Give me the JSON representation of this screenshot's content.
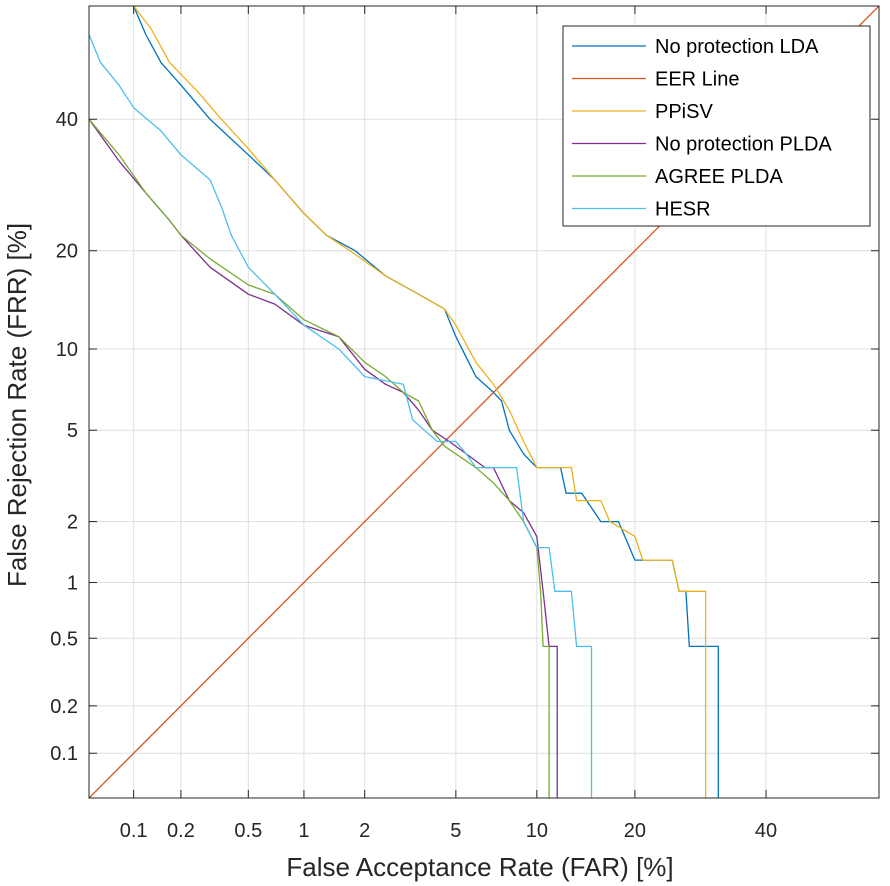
{
  "chart_data": {
    "type": "line",
    "title": "",
    "xlabel": "False Acceptance Rate (FAR) [%]",
    "ylabel": "False Rejection Rate (FRR) [%]",
    "scale": "normal-deviate (DET)",
    "xlim": [
      0.05,
      60
    ],
    "ylim": [
      0.05,
      60
    ],
    "xticks": [
      0.1,
      0.2,
      0.5,
      1,
      2,
      5,
      10,
      20,
      40
    ],
    "xtick_labels": [
      "0.1",
      "0.2",
      "0.5",
      "1",
      "2",
      "5",
      "10",
      "20",
      "40"
    ],
    "yticks": [
      0.1,
      0.2,
      0.5,
      1,
      2,
      5,
      10,
      20,
      40
    ],
    "ytick_labels": [
      "0.1",
      "0.2",
      "0.5",
      "1",
      "2",
      "5",
      "10",
      "20",
      "40"
    ],
    "grid": true,
    "legend_position": "top-right",
    "series": [
      {
        "name": "No protection LDA",
        "color": "#0072BD",
        "points": [
          [
            0.1,
            60
          ],
          [
            0.12,
            55
          ],
          [
            0.15,
            50
          ],
          [
            0.2,
            46
          ],
          [
            0.3,
            40
          ],
          [
            0.5,
            34
          ],
          [
            0.7,
            30
          ],
          [
            1,
            25
          ],
          [
            1.3,
            22
          ],
          [
            1.8,
            20
          ],
          [
            2.5,
            17
          ],
          [
            3.5,
            15
          ],
          [
            4.5,
            13.5
          ],
          [
            5,
            11
          ],
          [
            6,
            8
          ],
          [
            7,
            7
          ],
          [
            7.5,
            6.5
          ],
          [
            8,
            5
          ],
          [
            9,
            4
          ],
          [
            10,
            3.5
          ],
          [
            12,
            3.5
          ],
          [
            12.5,
            2.7
          ],
          [
            14,
            2.7
          ],
          [
            16,
            2
          ],
          [
            18,
            2
          ],
          [
            20,
            1.3
          ],
          [
            25,
            1.3
          ],
          [
            26,
            0.9
          ],
          [
            27,
            0.9
          ],
          [
            27.5,
            0.45
          ],
          [
            32,
            0.45
          ],
          [
            32,
            0.05
          ]
        ]
      },
      {
        "name": "EER Line",
        "color": "#D95319",
        "points": [
          [
            0.05,
            0.05
          ],
          [
            60,
            60
          ]
        ]
      },
      {
        "name": "PPiSV",
        "color": "#EDB120",
        "points": [
          [
            0.1,
            60
          ],
          [
            0.13,
            56
          ],
          [
            0.17,
            50
          ],
          [
            0.25,
            45
          ],
          [
            0.35,
            40
          ],
          [
            0.5,
            35
          ],
          [
            0.7,
            30
          ],
          [
            1,
            25
          ],
          [
            1.3,
            22
          ],
          [
            1.7,
            20
          ],
          [
            2.5,
            17
          ],
          [
            3.5,
            15
          ],
          [
            4.5,
            13.5
          ],
          [
            5,
            12
          ],
          [
            6,
            9
          ],
          [
            7,
            7.5
          ],
          [
            8,
            6
          ],
          [
            9,
            4.5
          ],
          [
            10,
            3.5
          ],
          [
            13,
            3.5
          ],
          [
            13.5,
            2.5
          ],
          [
            16,
            2.5
          ],
          [
            17,
            2
          ],
          [
            20,
            1.7
          ],
          [
            21,
            1.3
          ],
          [
            25,
            1.3
          ],
          [
            26,
            0.9
          ],
          [
            30,
            0.9
          ],
          [
            30,
            0.05
          ]
        ]
      },
      {
        "name": "No protection PLDA",
        "color": "#7E2F8E",
        "points": [
          [
            0.05,
            40
          ],
          [
            0.08,
            33
          ],
          [
            0.12,
            28
          ],
          [
            0.17,
            24
          ],
          [
            0.2,
            22
          ],
          [
            0.3,
            18
          ],
          [
            0.5,
            15
          ],
          [
            0.7,
            14
          ],
          [
            1,
            12
          ],
          [
            1.5,
            11
          ],
          [
            2,
            8.5
          ],
          [
            2.5,
            7.5
          ],
          [
            3,
            7
          ],
          [
            3.5,
            6
          ],
          [
            4,
            5
          ],
          [
            4.7,
            4.5
          ],
          [
            5.5,
            4
          ],
          [
            6.5,
            3.5
          ],
          [
            7,
            3.5
          ],
          [
            8,
            2.5
          ],
          [
            9,
            2.2
          ],
          [
            10,
            1.7
          ],
          [
            10.5,
            0.9
          ],
          [
            11,
            0.45
          ],
          [
            11.7,
            0.45
          ],
          [
            11.7,
            0.05
          ]
        ]
      },
      {
        "name": "AGREE PLDA",
        "color": "#77AC30",
        "points": [
          [
            0.05,
            40
          ],
          [
            0.08,
            34
          ],
          [
            0.12,
            28
          ],
          [
            0.17,
            24
          ],
          [
            0.2,
            22
          ],
          [
            0.3,
            19
          ],
          [
            0.5,
            16
          ],
          [
            0.7,
            15
          ],
          [
            1,
            12.5
          ],
          [
            1.5,
            11
          ],
          [
            2,
            9
          ],
          [
            2.5,
            8
          ],
          [
            3,
            7
          ],
          [
            3.5,
            6.5
          ],
          [
            4,
            5
          ],
          [
            4.5,
            4.3
          ],
          [
            5,
            4
          ],
          [
            6,
            3.5
          ],
          [
            7,
            3
          ],
          [
            8,
            2.5
          ],
          [
            9,
            2
          ],
          [
            10,
            1.5
          ],
          [
            10.3,
            0.9
          ],
          [
            10.5,
            0.45
          ],
          [
            11,
            0.45
          ],
          [
            11,
            0.05
          ]
        ]
      },
      {
        "name": "HESR",
        "color": "#4DBEEE",
        "points": [
          [
            0.05,
            55
          ],
          [
            0.06,
            50
          ],
          [
            0.08,
            46
          ],
          [
            0.1,
            42
          ],
          [
            0.15,
            38
          ],
          [
            0.2,
            34
          ],
          [
            0.3,
            30
          ],
          [
            0.35,
            26
          ],
          [
            0.4,
            22
          ],
          [
            0.5,
            18
          ],
          [
            0.7,
            15
          ],
          [
            1,
            12
          ],
          [
            1.5,
            10
          ],
          [
            2,
            8
          ],
          [
            3,
            7.5
          ],
          [
            3.3,
            5.5
          ],
          [
            3.7,
            5
          ],
          [
            4.2,
            4.5
          ],
          [
            5,
            4.5
          ],
          [
            5.5,
            4
          ],
          [
            6,
            3.5
          ],
          [
            8.5,
            3.5
          ],
          [
            9,
            2
          ],
          [
            10,
            1.5
          ],
          [
            11,
            1.5
          ],
          [
            11.5,
            0.9
          ],
          [
            13,
            0.9
          ],
          [
            13.5,
            0.45
          ],
          [
            15,
            0.45
          ],
          [
            15,
            0.05
          ]
        ]
      }
    ]
  }
}
